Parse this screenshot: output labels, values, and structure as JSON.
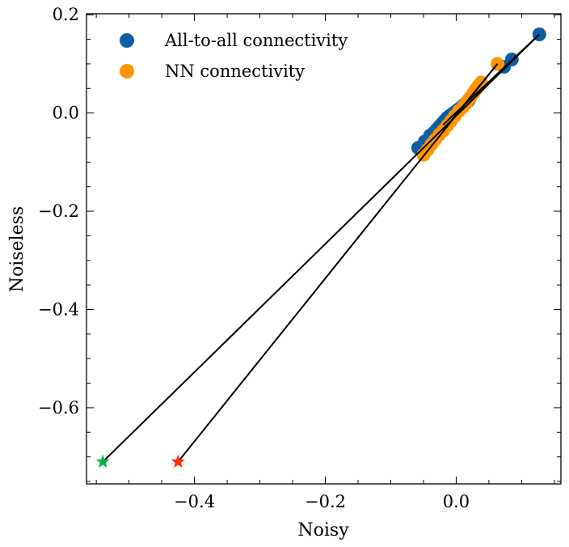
{
  "chart_data": {
    "type": "scatter",
    "title": "",
    "xlabel": "Noisy",
    "ylabel": "Noiseless",
    "xlim": [
      -0.565,
      0.16
    ],
    "ylim": [
      -0.755,
      0.202
    ],
    "xticks": [
      -0.4,
      -0.2,
      0.0
    ],
    "xtick_labels": [
      "−0.4",
      "−0.2",
      "0.0"
    ],
    "yticks": [
      0.2,
      0.0,
      -0.2,
      -0.4,
      -0.6
    ],
    "ytick_labels": [
      "0.2",
      "0.0",
      "−0.2",
      "−0.4",
      "−0.6"
    ],
    "legend_position": "top-left",
    "series": [
      {
        "name": "All-to-all connectivity",
        "color": "#0C5DA5",
        "marker": "circle",
        "x": [
          -0.058,
          -0.048,
          -0.04,
          -0.034,
          -0.03,
          -0.026,
          -0.022,
          -0.018,
          -0.014,
          -0.01,
          -0.006,
          -0.002,
          0.002,
          0.006,
          0.01,
          0.014,
          0.018,
          0.02,
          0.073,
          0.085,
          0.127
        ],
        "y": [
          -0.071,
          -0.058,
          -0.046,
          -0.04,
          -0.034,
          -0.028,
          -0.022,
          -0.016,
          -0.01,
          -0.006,
          -0.002,
          0.002,
          0.006,
          0.01,
          0.014,
          0.019,
          0.024,
          0.028,
          0.094,
          0.109,
          0.16
        ]
      },
      {
        "name": "NN connectivity",
        "color": "#FF9500",
        "marker": "circle",
        "x": [
          -0.05,
          -0.044,
          -0.038,
          -0.032,
          -0.026,
          -0.02,
          -0.014,
          -0.008,
          -0.002,
          0.004,
          0.01,
          0.016,
          0.022,
          0.026,
          0.03,
          0.034,
          0.038,
          0.063
        ],
        "y": [
          -0.085,
          -0.075,
          -0.064,
          -0.054,
          -0.044,
          -0.036,
          -0.026,
          -0.016,
          -0.006,
          0.004,
          0.012,
          0.022,
          0.032,
          0.04,
          0.048,
          0.055,
          0.062,
          0.1
        ]
      }
    ],
    "outliers": [
      {
        "label": "green star",
        "x": -0.54,
        "y": -0.71,
        "color": "#00B945",
        "marker": "star"
      },
      {
        "label": "red star",
        "x": -0.425,
        "y": -0.71,
        "color": "#FF2C00",
        "marker": "star"
      }
    ],
    "lines": [
      {
        "x": [
          -0.54,
          0.127
        ],
        "y": [
          -0.71,
          0.16
        ]
      },
      {
        "x": [
          -0.425,
          0.063
        ],
        "y": [
          -0.71,
          0.1
        ]
      },
      {
        "x": [
          -0.02,
          0.127
        ],
        "y": [
          -0.024,
          0.16
        ]
      },
      {
        "x": [
          -0.02,
          0.063
        ],
        "y": [
          -0.036,
          0.1
        ]
      }
    ]
  }
}
